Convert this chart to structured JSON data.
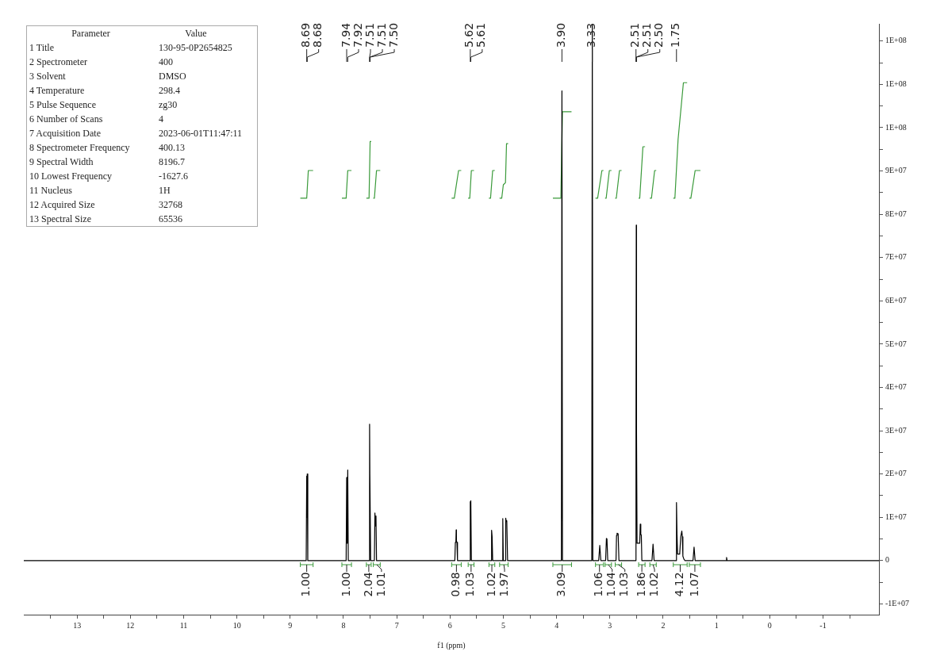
{
  "chart_data": {
    "type": "line",
    "xlabel": "f1 (ppm)",
    "xlim": [
      14,
      -2.05
    ],
    "ylim": [
      -12500000,
      124000000
    ],
    "xticks": [
      {
        "value": 13.5,
        "label": null
      },
      13,
      {
        "value": 12.5,
        "label": null
      },
      12,
      {
        "value": 11.5,
        "label": null
      },
      11,
      {
        "value": 10.5,
        "label": null
      },
      10,
      {
        "value": 9.5,
        "label": null
      },
      9,
      {
        "value": 8.5,
        "label": null
      },
      8,
      {
        "value": 7.5,
        "label": null
      },
      7,
      {
        "value": 6.5,
        "label": null
      },
      6,
      {
        "value": 5.5,
        "label": null
      },
      5,
      {
        "value": 4.5,
        "label": null
      },
      4,
      {
        "value": 3.5,
        "label": null
      },
      3,
      {
        "value": 2.5,
        "label": null
      },
      2,
      {
        "value": 1.5,
        "label": null
      },
      1,
      {
        "value": 0.5,
        "label": null
      },
      0,
      {
        "value": -0.5,
        "label": null
      },
      -1,
      {
        "value": -1.5,
        "label": null
      }
    ],
    "yticks": [
      {
        "value": -10000000,
        "label": "-1E+07"
      },
      {
        "value": -5000000,
        "label": null
      },
      0,
      {
        "value": 5000000,
        "label": null
      },
      {
        "value": 10000000,
        "label": "1E+07"
      },
      {
        "value": 15000000,
        "label": null
      },
      {
        "value": 20000000,
        "label": "2E+07"
      },
      {
        "value": 25000000,
        "label": null
      },
      {
        "value": 30000000,
        "label": "3E+07"
      },
      {
        "value": 35000000,
        "label": null
      },
      {
        "value": 40000000,
        "label": "4E+07"
      },
      {
        "value": 45000000,
        "label": null
      },
      {
        "value": 50000000,
        "label": "5E+07"
      },
      {
        "value": 55000000,
        "label": null
      },
      {
        "value": 60000000,
        "label": "6E+07"
      },
      {
        "value": 65000000,
        "label": null
      },
      {
        "value": 70000000,
        "label": "7E+07"
      },
      {
        "value": 75000000,
        "label": null
      },
      {
        "value": 80000000,
        "label": "8E+07"
      },
      {
        "value": 85000000,
        "label": null
      },
      {
        "value": 90000000,
        "label": "9E+07"
      },
      {
        "value": 95000000,
        "label": null
      },
      {
        "value": 100000000,
        "label": "1E+08"
      },
      {
        "value": 105000000,
        "label": null
      },
      {
        "value": 110000000,
        "label": "1E+08"
      },
      {
        "value": 115000000,
        "label": null
      },
      {
        "value": 120000000,
        "label": "1E+08"
      }
    ],
    "grid": false,
    "legend": false,
    "marker": "none",
    "line_style": "solid",
    "series": [
      {
        "color": "#000000",
        "x": [
          14,
          8.7,
          8.69,
          8.685,
          8.68,
          8.67,
          7.95,
          7.94,
          7.93,
          7.92,
          7.91,
          7.52,
          7.51,
          7.505,
          7.5,
          7.49,
          7.42,
          7.41,
          7.4,
          7.39,
          7.38,
          5.91,
          5.9,
          5.89,
          5.885,
          5.88,
          5.87,
          5.86,
          5.63,
          5.62,
          5.615,
          5.61,
          5.6,
          5.23,
          5.22,
          5.21,
          5.2,
          5.02,
          5.01,
          5,
          4.96,
          4.955,
          4.945,
          4.935,
          4.92,
          3.91,
          3.9,
          3.89,
          3.34,
          3.33,
          3.32,
          3.21,
          3.19,
          3.17,
          3.08,
          3.065,
          3.055,
          3.04,
          2.885,
          2.875,
          2.865,
          2.845,
          2.83,
          2.52,
          2.51,
          2.505,
          2.5,
          2.49,
          2.44,
          2.43,
          2.42,
          2.41,
          2.4,
          2.21,
          2.19,
          2.17,
          1.76,
          1.75,
          1.74,
          1.73,
          1.71,
          1.69,
          1.67,
          1.65,
          1.64,
          1.63,
          1.61,
          1.59,
          1.44,
          1.42,
          1.4,
          0.82,
          0.81,
          0.8,
          -2.05
        ],
        "values": [
          0,
          0,
          19500000,
          10000000,
          20000000,
          0,
          0,
          19200000,
          4000000,
          20900000,
          0,
          0,
          31500000,
          20000000,
          20000000,
          0,
          0,
          11000000,
          8000000,
          10300000,
          0,
          0,
          4200000,
          4500000,
          7100000,
          4500000,
          4200000,
          0,
          0,
          13600000,
          12000000,
          13800000,
          0,
          0,
          7000000,
          5500000,
          0,
          0,
          9700000,
          0,
          0,
          9800000,
          9000000,
          9200000,
          0,
          0,
          108500000,
          0,
          0,
          124000000,
          0,
          0,
          3500000,
          0,
          0,
          5100000,
          5000000,
          0,
          0,
          5800000,
          6300000,
          6200000,
          0,
          0,
          30000000,
          77500000,
          30000000,
          4000000,
          4000000,
          8400000,
          6000000,
          5900000,
          0,
          0,
          3800000,
          0,
          0,
          13400000,
          6000000,
          1500000,
          1500000,
          1500000,
          5500000,
          6800000,
          5500000,
          1000000,
          300000,
          0,
          0,
          3100000,
          0,
          0,
          700000,
          0,
          0
        ]
      },
      {
        "color": "#3a9a3a",
        "x": [
          8.81,
          8.69,
          8.66,
          8.57,
          null,
          8.03,
          7.95,
          7.92,
          7.85,
          null,
          7.57,
          7.52,
          7.5,
          7.48,
          null,
          7.44,
          7.42,
          7.38,
          7.31,
          null,
          5.97,
          5.92,
          5.84,
          5.79,
          null,
          5.66,
          5.63,
          5.6,
          5.55,
          null,
          5.27,
          5.24,
          5.2,
          5.16,
          null,
          5.07,
          5.03,
          5,
          4.96,
          4.94,
          4.91,
          null,
          4.07,
          3.92,
          3.89,
          3.72,
          null,
          3.27,
          3.23,
          3.15,
          3.12,
          null,
          3.09,
          3.07,
          3.01,
          2.97,
          null,
          2.9,
          2.88,
          2.82,
          2.78,
          null,
          2.46,
          2.44,
          2.38,
          2.34,
          null,
          2.25,
          2.22,
          2.16,
          2.13,
          null,
          1.81,
          1.78,
          1.72,
          1.62,
          1.55,
          null,
          1.51,
          1.48,
          1.4,
          1.3
        ],
        "values": [
          83700000,
          83700000,
          90100000,
          90100000,
          null,
          83700000,
          83700000,
          90100000,
          90100000,
          null,
          83700000,
          83700000,
          96800000,
          96800000,
          null,
          83700000,
          83700000,
          90100000,
          90100000,
          null,
          83700000,
          83700000,
          90100000,
          90100000,
          null,
          83700000,
          83700000,
          90100000,
          90100000,
          null,
          83700000,
          83700000,
          90100000,
          90100000,
          null,
          83700000,
          83700000,
          86800000,
          87300000,
          96300000,
          96300000,
          null,
          83700000,
          83700000,
          103700000,
          103700000,
          null,
          83700000,
          83700000,
          90100000,
          90100000,
          null,
          83700000,
          83700000,
          90100000,
          90100000,
          null,
          83700000,
          83700000,
          90100000,
          90100000,
          null,
          83700000,
          83700000,
          95600000,
          95600000,
          null,
          83700000,
          83700000,
          90100000,
          90100000,
          null,
          83700000,
          83700000,
          97300000,
          110400000,
          110400000,
          null,
          83700000,
          83700000,
          90100000,
          90100000
        ]
      }
    ],
    "annotations": [
      "Parameter",
      "Value",
      "1 Title",
      "130-95-0P2654825",
      "2 Spectrometer",
      "400",
      "3 Solvent",
      "DMSO",
      "4 Temperature",
      "298.4",
      "5 Pulse Sequence",
      "zg30",
      "6 Number of Scans",
      "4",
      "7 Acquisition Date",
      "2023-06-01T11:47:11",
      "8 Spectrometer Frequency",
      "400.13",
      "9 Spectral Width",
      "8196.7",
      "10 Lowest Frequency",
      "-1627.6",
      "11 Nucleus",
      "1H",
      "12 Acquired Size",
      "32768",
      "13 Spectral Size",
      "65536",
      {
        "text": "8.69",
        "x": 8.69
      },
      {
        "text": "8.68",
        "x": 8.68
      },
      {
        "text": "7.94",
        "x": 7.94
      },
      {
        "text": "7.92",
        "x": 7.92
      },
      {
        "text": "7.51",
        "x": 7.51
      },
      {
        "text": "7.51",
        "x": 7.505
      },
      {
        "text": "7.50",
        "x": 7.5
      },
      {
        "text": "5.62",
        "x": 5.62
      },
      {
        "text": "5.61",
        "x": 5.61
      },
      {
        "text": "3.90",
        "x": 3.9
      },
      {
        "text": "3.33",
        "x": 3.33
      },
      {
        "text": "2.51",
        "x": 2.51
      },
      {
        "text": "2.51",
        "x": 2.505
      },
      {
        "text": "2.50",
        "x": 2.5
      },
      {
        "text": "1.75",
        "x": 1.75
      },
      "1.00",
      "1.00",
      "2.04",
      "1.01",
      "0.98",
      "1.03",
      "1.02",
      "1.97",
      "3.09",
      "1.06",
      "1.04",
      "1.03",
      "1.86",
      "1.02",
      "4.12",
      "1.07"
    ]
  }
}
